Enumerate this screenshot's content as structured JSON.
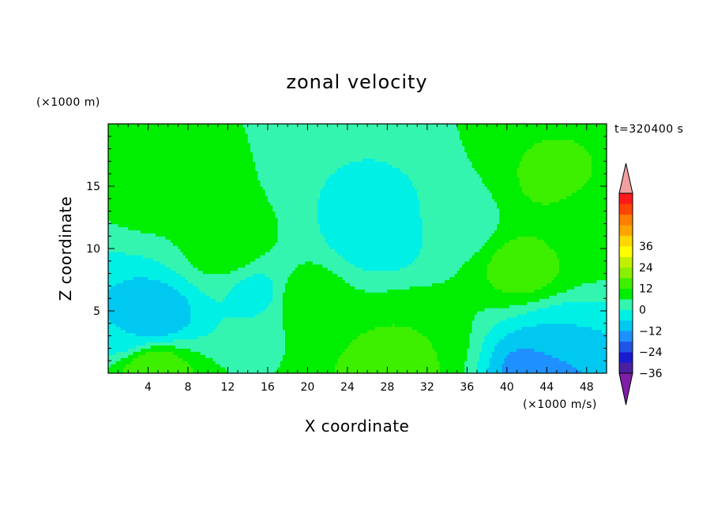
{
  "chart_data": {
    "type": "heatmap",
    "title": "zonal velocity",
    "xlabel": "X coordinate",
    "ylabel": "Z coordinate",
    "x_unit": "(×1000 m/s)",
    "y_unit": "(×1000 m)",
    "time_label": "t=320400 s",
    "xlim": [
      0,
      50
    ],
    "ylim": [
      0,
      20
    ],
    "x_ticks": [
      4,
      8,
      12,
      16,
      20,
      24,
      28,
      32,
      36,
      40,
      44,
      48
    ],
    "y_ticks": [
      5,
      10,
      15
    ],
    "colorbar": {
      "min": -42,
      "max": 42,
      "step": 6,
      "tick_values": [
        36,
        24,
        12,
        0,
        -12,
        -24,
        -36
      ],
      "tick_labels": [
        "36",
        "24",
        "12",
        "0",
        "−12",
        "−24",
        "−36"
      ],
      "colors": [
        "#7f1fa8",
        "#4a20a0",
        "#1a1ad0",
        "#1f55e6",
        "#1e90ff",
        "#00c8f0",
        "#00f0e6",
        "#34f5b0",
        "#00ee00",
        "#3cf000",
        "#88f000",
        "#c0f000",
        "#ffff00",
        "#ffd700",
        "#ffa500",
        "#ff7f00",
        "#ff4500",
        "#ff1a1a",
        "#f0a0a0"
      ]
    },
    "features": [
      {
        "x": 4.5,
        "z": 4.5,
        "value": -18
      },
      {
        "x": 4.5,
        "z": 0.5,
        "value": 12
      },
      {
        "x": 2.0,
        "z": 3.5,
        "value": -12
      },
      {
        "x": 27.0,
        "z": 11.5,
        "value": -12
      },
      {
        "x": 28.5,
        "z": 0.5,
        "value": 10
      },
      {
        "x": 31.0,
        "z": 2.5,
        "value": 6
      },
      {
        "x": 41.5,
        "z": 8.5,
        "value": 9
      },
      {
        "x": 44.5,
        "z": 15.5,
        "value": 7
      },
      {
        "x": 43.5,
        "z": 0.4,
        "value": -24
      },
      {
        "x": 45.0,
        "z": 2.5,
        "value": -12
      },
      {
        "x": 5.0,
        "z": 15.0,
        "value": 3
      },
      {
        "x": 12.0,
        "z": 10.0,
        "value": 4
      },
      {
        "x": 47.5,
        "z": 12.0,
        "value": 4
      },
      {
        "x": 15.0,
        "z": 6.5,
        "value": -8
      },
      {
        "x": 19.5,
        "z": 6.0,
        "value": 4
      },
      {
        "x": 35.0,
        "z": 12.0,
        "value": -4
      }
    ]
  }
}
